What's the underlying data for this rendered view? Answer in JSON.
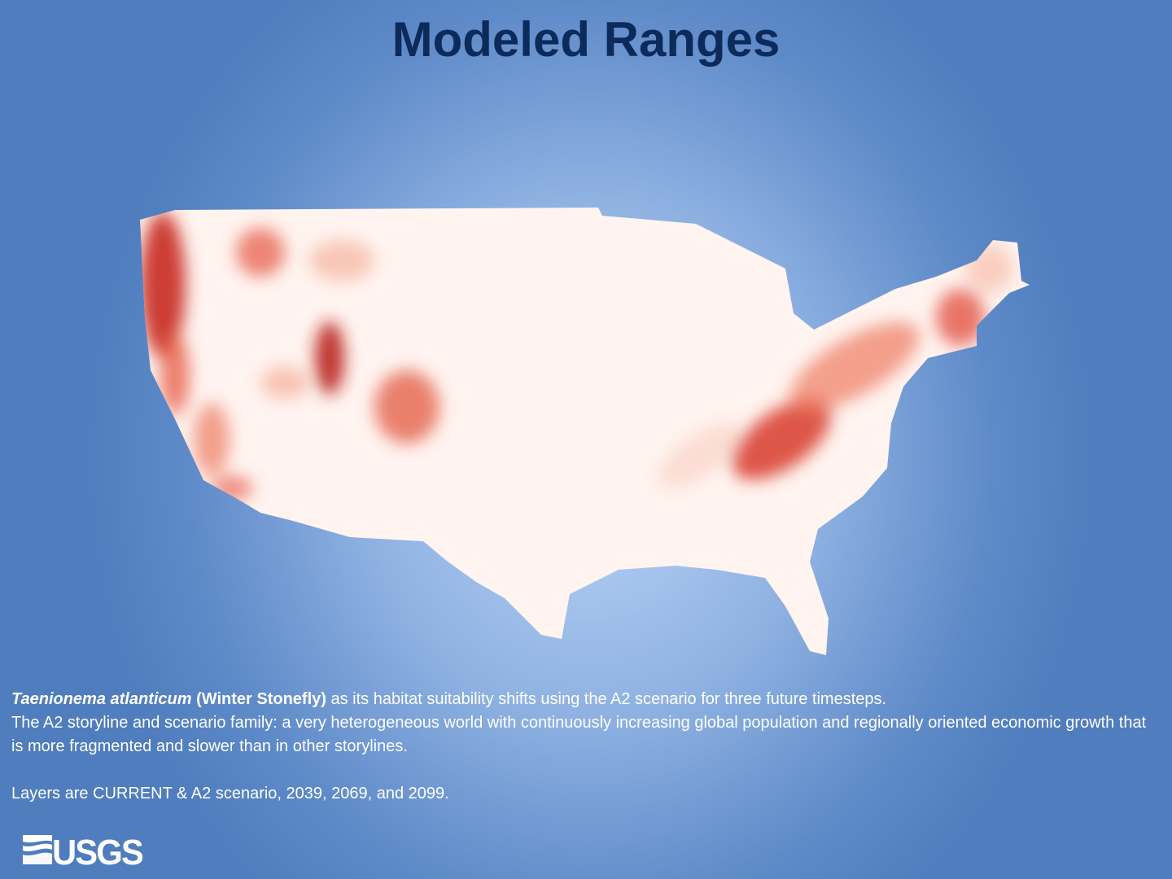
{
  "header": {
    "title": "Modeled Ranges"
  },
  "description": {
    "species": "Taenionema atlanticum",
    "common_name": "(Winter Stonefly)",
    "lead": "as its habitat suitability shifts using the A2 scenario for three future timesteps.",
    "scenario": "The A2 storyline and scenario family: a very heterogeneous world with continuously increasing global population and regionally oriented economic growth that is more fragmented and slower than in other storylines.",
    "layers": "Layers are CURRENT & A2 scenario, 2039, 2069, and 2099."
  },
  "logo": {
    "text": "USGS"
  }
}
